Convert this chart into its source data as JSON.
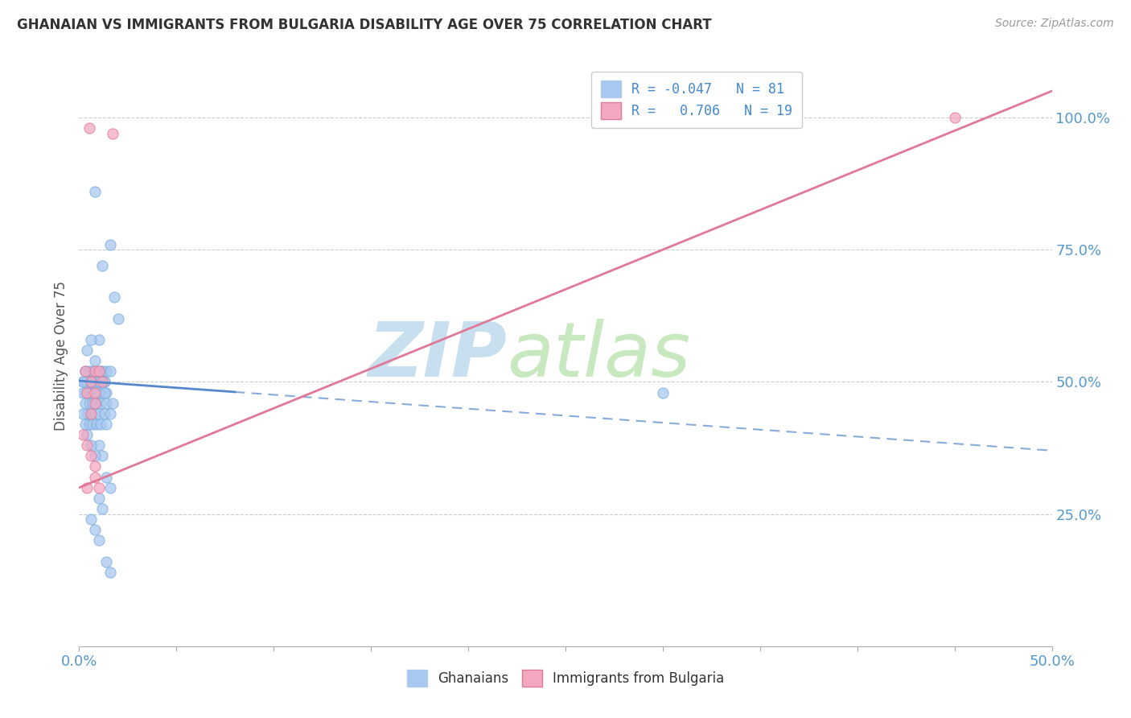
{
  "title": "GHANAIAN VS IMMIGRANTS FROM BULGARIA DISABILITY AGE OVER 75 CORRELATION CHART",
  "source": "Source: ZipAtlas.com",
  "ylabel": "Disability Age Over 75",
  "xlim": [
    0.0,
    0.5
  ],
  "ylim": [
    0.0,
    1.1
  ],
  "R_ghanaians": -0.047,
  "N_ghanaians": 81,
  "R_bulgaria": 0.706,
  "N_bulgaria": 19,
  "ghanaian_color": "#a8c8f0",
  "ghanaian_edge": "#7aaedd",
  "bulgaria_color": "#f4a8c0",
  "bulgaria_edge": "#e07898",
  "trend_ghanaian_color": "#5588cc",
  "trend_bulgaria_color": "#e07898",
  "background_color": "#ffffff",
  "watermark_zip": "ZIP",
  "watermark_atlas": "atlas",
  "watermark_color_zip": "#c8dff0",
  "watermark_color_atlas": "#c8e8c0",
  "grid_color": "#cccccc",
  "tick_color": "#5599cc",
  "ghanaian_points_x": [
    0.008,
    0.016,
    0.012,
    0.018,
    0.02,
    0.01,
    0.006,
    0.004,
    0.008,
    0.012,
    0.003,
    0.005,
    0.007,
    0.009,
    0.011,
    0.004,
    0.006,
    0.008,
    0.01,
    0.013,
    0.002,
    0.003,
    0.005,
    0.007,
    0.009,
    0.011,
    0.014,
    0.016,
    0.004,
    0.006,
    0.008,
    0.01,
    0.013,
    0.002,
    0.003,
    0.005,
    0.007,
    0.009,
    0.011,
    0.014,
    0.004,
    0.006,
    0.008,
    0.01,
    0.013,
    0.002,
    0.003,
    0.005,
    0.007,
    0.009,
    0.011,
    0.014,
    0.017,
    0.004,
    0.006,
    0.008,
    0.01,
    0.013,
    0.002,
    0.003,
    0.005,
    0.007,
    0.009,
    0.011,
    0.014,
    0.016,
    0.004,
    0.01,
    0.012,
    0.006,
    0.008,
    0.014,
    0.016,
    0.01,
    0.012,
    0.006,
    0.008,
    0.014,
    0.016,
    0.01,
    0.3
  ],
  "ghanaian_points_y": [
    0.86,
    0.76,
    0.72,
    0.66,
    0.62,
    0.58,
    0.58,
    0.56,
    0.54,
    0.52,
    0.52,
    0.52,
    0.52,
    0.52,
    0.52,
    0.5,
    0.5,
    0.5,
    0.5,
    0.5,
    0.5,
    0.5,
    0.5,
    0.5,
    0.5,
    0.5,
    0.52,
    0.52,
    0.5,
    0.5,
    0.5,
    0.5,
    0.5,
    0.5,
    0.48,
    0.48,
    0.48,
    0.48,
    0.48,
    0.48,
    0.48,
    0.48,
    0.48,
    0.48,
    0.48,
    0.48,
    0.46,
    0.46,
    0.46,
    0.46,
    0.46,
    0.46,
    0.46,
    0.44,
    0.44,
    0.44,
    0.44,
    0.44,
    0.44,
    0.42,
    0.42,
    0.42,
    0.42,
    0.42,
    0.42,
    0.44,
    0.4,
    0.38,
    0.36,
    0.38,
    0.36,
    0.32,
    0.3,
    0.28,
    0.26,
    0.24,
    0.22,
    0.16,
    0.14,
    0.2,
    0.48
  ],
  "bulgaria_points_x": [
    0.017,
    0.003,
    0.008,
    0.006,
    0.01,
    0.004,
    0.008,
    0.012,
    0.006,
    0.008,
    0.002,
    0.004,
    0.006,
    0.008,
    0.004,
    0.01,
    0.008,
    0.45,
    0.005
  ],
  "bulgaria_points_y": [
    0.97,
    0.52,
    0.52,
    0.5,
    0.52,
    0.48,
    0.48,
    0.5,
    0.44,
    0.46,
    0.4,
    0.38,
    0.36,
    0.34,
    0.3,
    0.3,
    0.32,
    1.0,
    0.98
  ],
  "trend_g_x0": 0.0,
  "trend_g_y0": 0.502,
  "trend_g_x1": 0.5,
  "trend_g_y1": 0.37,
  "trend_b_x0": 0.0,
  "trend_b_y0": 0.3,
  "trend_b_x1": 0.5,
  "trend_b_y1": 1.05,
  "trend_g_solid_end": 0.08
}
